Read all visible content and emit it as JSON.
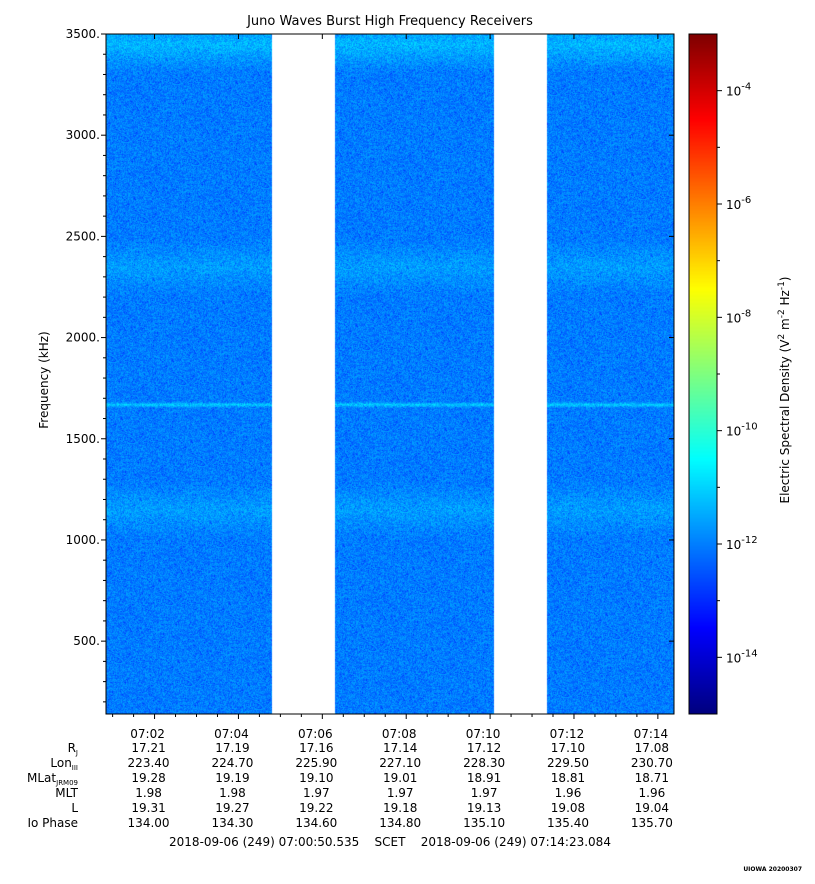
{
  "chart_data": {
    "type": "heatmap",
    "title": "Juno Waves Burst High Frequency Receivers",
    "ylabel": "Frequency (kHz)",
    "ylim": [
      140,
      3500
    ],
    "y_ticks": [
      {
        "value": 3500,
        "label": "3500."
      },
      {
        "value": 3000,
        "label": "3000."
      },
      {
        "value": 2500,
        "label": "2500."
      },
      {
        "value": 2000,
        "label": "2000."
      },
      {
        "value": 1500,
        "label": "1500."
      },
      {
        "value": 1000,
        "label": "1000."
      },
      {
        "value": 500,
        "label": "500."
      }
    ],
    "x_range": [
      "07:00:50.535",
      "07:14:23.084"
    ],
    "x_ticks": [
      "07:02",
      "07:04",
      "07:06",
      "07:08",
      "07:10",
      "07:12",
      "07:14"
    ],
    "x_tick_values": [
      "07:02",
      "07:04",
      "07:06",
      "07:08",
      "07:10",
      "07:12",
      "07:14"
    ],
    "data_segments": [
      {
        "start": "07:00:50.535",
        "end": "07:04:47"
      },
      {
        "start": "07:06:18",
        "end": "07:10:05"
      },
      {
        "start": "07:11:21",
        "end": "07:14:23.084"
      }
    ],
    "gaps": [
      {
        "start": "07:04:47",
        "end": "07:06:18"
      },
      {
        "start": "07:10:05",
        "end": "07:11:21"
      }
    ],
    "features": [
      {
        "frequency_khz": 3450,
        "log10_density": -11.3
      },
      {
        "frequency_khz": 1670,
        "log10_density": -11.0
      },
      {
        "frequency_khz": 2350,
        "log10_density": -11.6
      },
      {
        "frequency_khz": 1150,
        "log10_density": -11.6
      }
    ],
    "background_log10_density": -12.0,
    "colorbar": {
      "label": "Electric Spectral Density (V",
      "label_sup1": "2",
      "label_mid": " m",
      "label_sup2": "-2",
      "label_mid2": " Hz",
      "label_sup3": "-1",
      "label_end": ")",
      "range_log10": [
        -15,
        -3
      ],
      "ticks": [
        {
          "value": -4,
          "base": "10",
          "exp": "-4"
        },
        {
          "value": -6,
          "base": "10",
          "exp": "-6"
        },
        {
          "value": -8,
          "base": "10",
          "exp": "-8"
        },
        {
          "value": -10,
          "base": "10",
          "exp": "-10"
        },
        {
          "value": -12,
          "base": "10",
          "exp": "-12"
        },
        {
          "value": -14,
          "base": "10",
          "exp": "-14"
        }
      ]
    }
  },
  "ephemeris": {
    "rows": [
      {
        "name": "R",
        "sub": "J",
        "values": [
          "17.21",
          "17.19",
          "17.16",
          "17.14",
          "17.12",
          "17.10",
          "17.08"
        ]
      },
      {
        "name": "Lon",
        "sub": "III",
        "values": [
          "223.40",
          "224.70",
          "225.90",
          "227.10",
          "228.30",
          "229.50",
          "230.70"
        ]
      },
      {
        "name": "MLat",
        "sub": "JRM09",
        "values": [
          "19.28",
          "19.19",
          "19.10",
          "19.01",
          "18.91",
          "18.81",
          "18.71"
        ]
      },
      {
        "name": "MLT",
        "sub": "",
        "values": [
          "1.98",
          "1.98",
          "1.97",
          "1.97",
          "1.97",
          "1.96",
          "1.96"
        ]
      },
      {
        "name": "L",
        "sub": "",
        "values": [
          "19.31",
          "19.27",
          "19.22",
          "19.18",
          "19.13",
          "19.08",
          "19.04"
        ]
      },
      {
        "name": "Io Phase",
        "sub": "",
        "values": [
          "134.00",
          "134.30",
          "134.60",
          "134.80",
          "135.10",
          "135.40",
          "135.70"
        ]
      }
    ]
  },
  "footer": {
    "time_range": "2018-09-06 (249) 07:00:50.535    SCET    2018-09-06 (249) 07:14:23.084",
    "credit": "UIOWA 20200307"
  }
}
